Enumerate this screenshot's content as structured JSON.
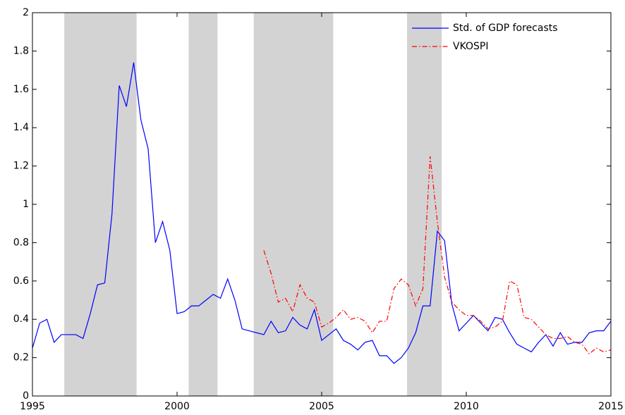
{
  "chart_data": {
    "type": "line",
    "xlim": [
      1995,
      2015
    ],
    "xticks": [
      1995,
      2000,
      2005,
      2010,
      2015
    ],
    "ylim": [
      0,
      2
    ],
    "yticks": [
      0,
      0.2,
      0.4,
      0.6,
      0.8,
      1,
      1.2,
      1.4,
      1.6,
      1.8,
      2
    ],
    "legend": "upper right",
    "shade_color": "#d3d3d3",
    "shaded_regions": [
      [
        1996.1,
        1998.6
      ],
      [
        2000.4,
        2001.4
      ],
      [
        2002.65,
        2005.4
      ],
      [
        2007.95,
        2009.15
      ]
    ],
    "series": [
      {
        "name": "Std. of GDP forecasts",
        "color": "#0000ff",
        "style": "solid",
        "x": [
          1995,
          1995.25,
          1995.5,
          1995.75,
          1996,
          1996.25,
          1996.5,
          1996.75,
          1997,
          1997.25,
          1997.5,
          1997.75,
          1998,
          1998.25,
          1998.5,
          1998.75,
          1999,
          1999.25,
          1999.5,
          1999.75,
          2000,
          2000.25,
          2000.5,
          2000.75,
          2001,
          2001.25,
          2001.5,
          2001.75,
          2002,
          2002.25,
          2002.5,
          2002.75,
          2003,
          2003.25,
          2003.5,
          2003.75,
          2004,
          2004.25,
          2004.5,
          2004.75,
          2005,
          2005.25,
          2005.5,
          2005.75,
          2006,
          2006.25,
          2006.5,
          2006.75,
          2007,
          2007.25,
          2007.5,
          2007.75,
          2008,
          2008.25,
          2008.5,
          2008.75,
          2009,
          2009.25,
          2009.5,
          2009.75,
          2010,
          2010.25,
          2010.5,
          2010.75,
          2011,
          2011.25,
          2011.5,
          2011.75,
          2012,
          2012.25,
          2012.5,
          2012.75,
          2013,
          2013.25,
          2013.5,
          2013.75,
          2014,
          2014.25,
          2014.5,
          2014.75,
          2015
        ],
        "values": [
          0.25,
          0.38,
          0.4,
          0.28,
          0.32,
          0.32,
          0.32,
          0.3,
          0.43,
          0.58,
          0.59,
          0.95,
          1.62,
          1.51,
          1.74,
          1.44,
          1.29,
          0.8,
          0.91,
          0.76,
          0.43,
          0.44,
          0.47,
          0.47,
          0.5,
          0.53,
          0.51,
          0.61,
          0.5,
          0.35,
          0.34,
          0.33,
          0.32,
          0.39,
          0.33,
          0.34,
          0.41,
          0.37,
          0.35,
          0.45,
          0.29,
          0.32,
          0.35,
          0.29,
          0.27,
          0.24,
          0.28,
          0.29,
          0.21,
          0.21,
          0.17,
          0.2,
          0.25,
          0.33,
          0.47,
          0.47,
          0.86,
          0.81,
          0.48,
          0.34,
          0.38,
          0.42,
          0.38,
          0.34,
          0.41,
          0.4,
          0.33,
          0.27,
          0.25,
          0.23,
          0.28,
          0.32,
          0.26,
          0.33,
          0.27,
          0.28,
          0.28,
          0.33,
          0.34,
          0.34,
          0.39
        ]
      },
      {
        "name": "VKOSPI",
        "color": "#ff0000",
        "style": "dashdot",
        "x": [
          2003,
          2003.25,
          2003.5,
          2003.75,
          2004,
          2004.25,
          2004.5,
          2004.75,
          2005,
          2005.25,
          2005.5,
          2005.75,
          2006,
          2006.25,
          2006.5,
          2006.75,
          2007,
          2007.25,
          2007.5,
          2007.75,
          2008,
          2008.25,
          2008.5,
          2008.75,
          2009,
          2009.25,
          2009.5,
          2009.75,
          2010,
          2010.25,
          2010.5,
          2010.75,
          2011,
          2011.25,
          2011.5,
          2011.75,
          2012,
          2012.25,
          2012.5,
          2012.75,
          2013,
          2013.25,
          2013.5,
          2013.75,
          2014,
          2014.25,
          2014.5,
          2014.75,
          2015
        ],
        "values": [
          0.76,
          0.64,
          0.49,
          0.51,
          0.44,
          0.58,
          0.51,
          0.49,
          0.36,
          0.38,
          0.41,
          0.45,
          0.4,
          0.41,
          0.39,
          0.33,
          0.39,
          0.39,
          0.56,
          0.61,
          0.58,
          0.47,
          0.56,
          1.25,
          0.91,
          0.62,
          0.49,
          0.45,
          0.42,
          0.42,
          0.39,
          0.35,
          0.36,
          0.39,
          0.6,
          0.58,
          0.41,
          0.4,
          0.36,
          0.32,
          0.3,
          0.3,
          0.31,
          0.28,
          0.27,
          0.22,
          0.25,
          0.23,
          0.24
        ]
      }
    ]
  }
}
